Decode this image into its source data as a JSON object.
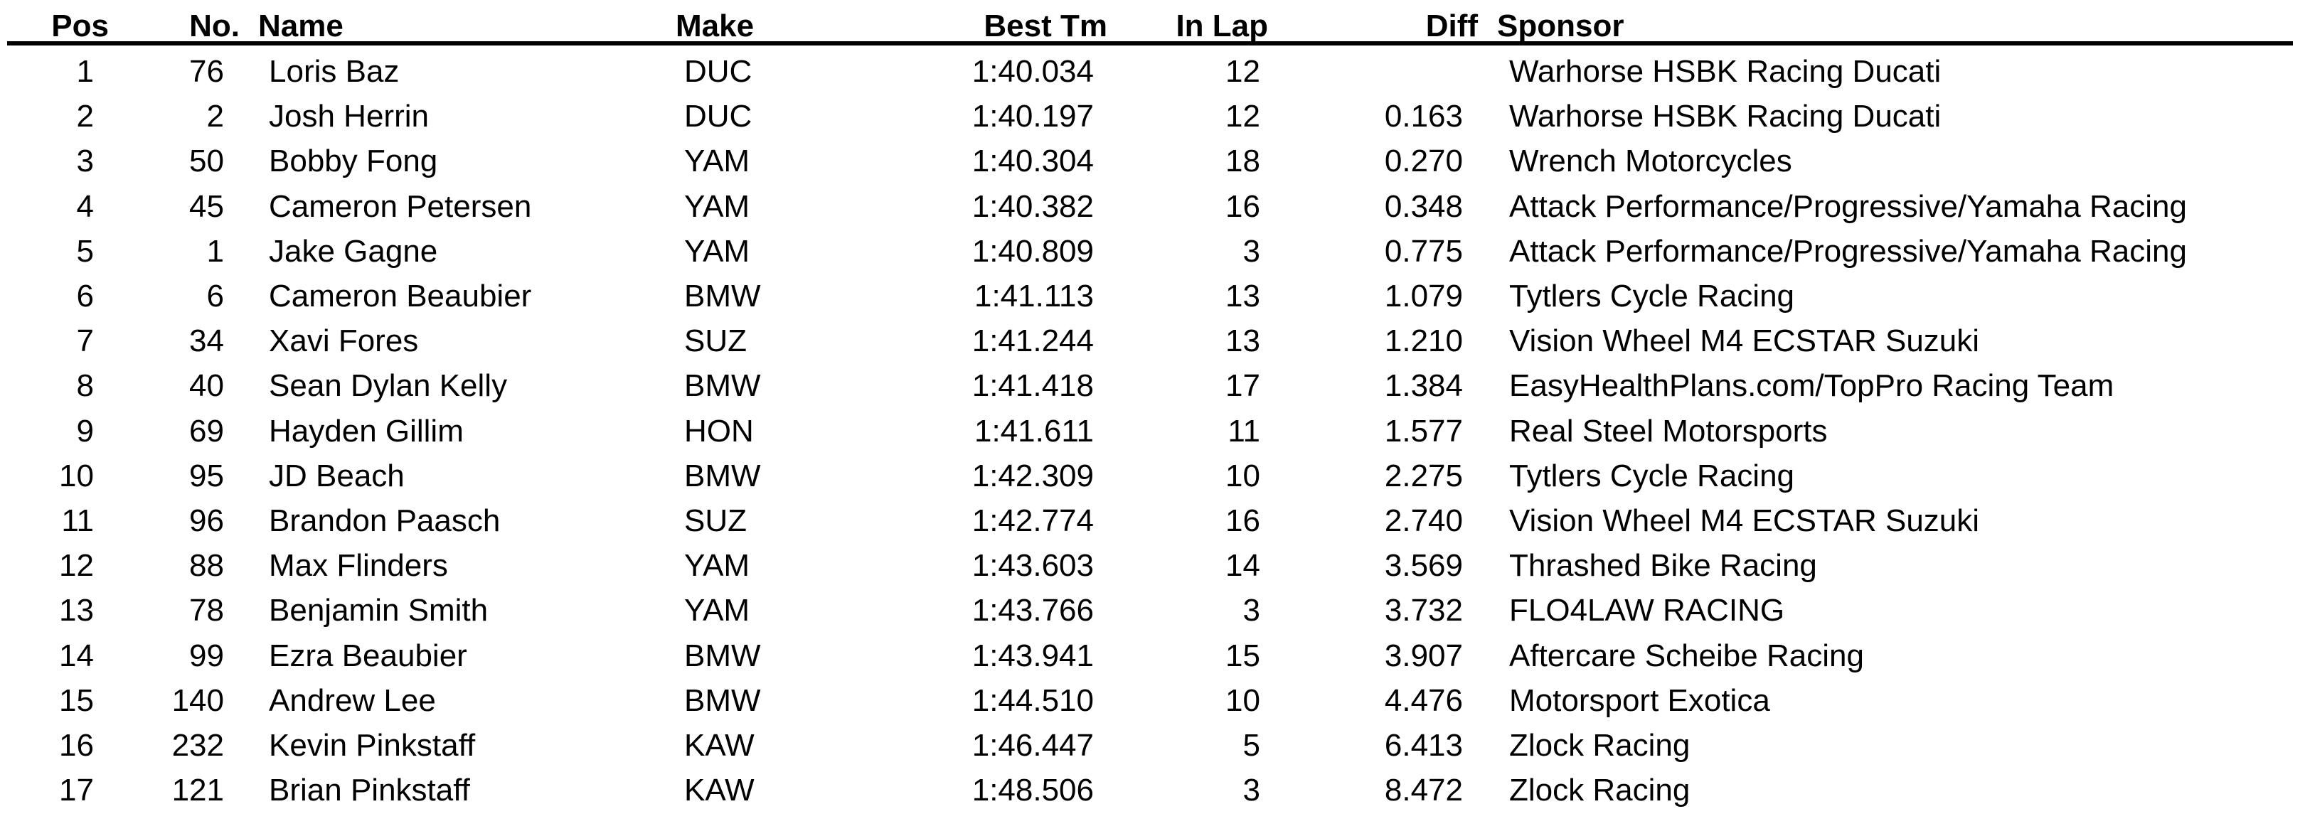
{
  "colors": {
    "text": "#000000",
    "background": "#ffffff",
    "rule": "#000000"
  },
  "table": {
    "columns": [
      {
        "key": "pos",
        "label": "Pos",
        "align": "right"
      },
      {
        "key": "no",
        "label": "No.",
        "align": "right"
      },
      {
        "key": "name",
        "label": "Name",
        "align": "left"
      },
      {
        "key": "make",
        "label": "Make",
        "align": "left"
      },
      {
        "key": "best",
        "label": "Best Tm",
        "align": "right"
      },
      {
        "key": "inlap",
        "label": "In Lap",
        "align": "right"
      },
      {
        "key": "diff",
        "label": "Diff",
        "align": "right"
      },
      {
        "key": "sponsor",
        "label": "Sponsor",
        "align": "left"
      }
    ],
    "rows": [
      {
        "pos": "1",
        "no": "76",
        "name": "Loris Baz",
        "make": "DUC",
        "best": "1:40.034",
        "inlap": "12",
        "diff": "",
        "sponsor": "Warhorse HSBK Racing Ducati"
      },
      {
        "pos": "2",
        "no": "2",
        "name": "Josh Herrin",
        "make": "DUC",
        "best": "1:40.197",
        "inlap": "12",
        "diff": "0.163",
        "sponsor": "Warhorse HSBK Racing Ducati"
      },
      {
        "pos": "3",
        "no": "50",
        "name": "Bobby Fong",
        "make": "YAM",
        "best": "1:40.304",
        "inlap": "18",
        "diff": "0.270",
        "sponsor": "Wrench Motorcycles"
      },
      {
        "pos": "4",
        "no": "45",
        "name": "Cameron Petersen",
        "make": "YAM",
        "best": "1:40.382",
        "inlap": "16",
        "diff": "0.348",
        "sponsor": "Attack Performance/Progressive/Yamaha Racing"
      },
      {
        "pos": "5",
        "no": "1",
        "name": "Jake Gagne",
        "make": "YAM",
        "best": "1:40.809",
        "inlap": "3",
        "diff": "0.775",
        "sponsor": "Attack Performance/Progressive/Yamaha Racing"
      },
      {
        "pos": "6",
        "no": "6",
        "name": "Cameron Beaubier",
        "make": "BMW",
        "best": "1:41.113",
        "inlap": "13",
        "diff": "1.079",
        "sponsor": "Tytlers Cycle Racing"
      },
      {
        "pos": "7",
        "no": "34",
        "name": "Xavi Fores",
        "make": "SUZ",
        "best": "1:41.244",
        "inlap": "13",
        "diff": "1.210",
        "sponsor": "Vision Wheel M4 ECSTAR Suzuki"
      },
      {
        "pos": "8",
        "no": "40",
        "name": "Sean Dylan Kelly",
        "make": "BMW",
        "best": "1:41.418",
        "inlap": "17",
        "diff": "1.384",
        "sponsor": "EasyHealthPlans.com/TopPro Racing Team"
      },
      {
        "pos": "9",
        "no": "69",
        "name": "Hayden Gillim",
        "make": "HON",
        "best": "1:41.611",
        "inlap": "11",
        "diff": "1.577",
        "sponsor": "Real Steel Motorsports"
      },
      {
        "pos": "10",
        "no": "95",
        "name": "JD Beach",
        "make": "BMW",
        "best": "1:42.309",
        "inlap": "10",
        "diff": "2.275",
        "sponsor": "Tytlers Cycle Racing"
      },
      {
        "pos": "11",
        "no": "96",
        "name": "Brandon Paasch",
        "make": "SUZ",
        "best": "1:42.774",
        "inlap": "16",
        "diff": "2.740",
        "sponsor": "Vision Wheel M4 ECSTAR Suzuki"
      },
      {
        "pos": "12",
        "no": "88",
        "name": "Max Flinders",
        "make": "YAM",
        "best": "1:43.603",
        "inlap": "14",
        "diff": "3.569",
        "sponsor": "Thrashed Bike Racing"
      },
      {
        "pos": "13",
        "no": "78",
        "name": "Benjamin Smith",
        "make": "YAM",
        "best": "1:43.766",
        "inlap": "3",
        "diff": "3.732",
        "sponsor": "FLO4LAW RACING"
      },
      {
        "pos": "14",
        "no": "99",
        "name": "Ezra Beaubier",
        "make": "BMW",
        "best": "1:43.941",
        "inlap": "15",
        "diff": "3.907",
        "sponsor": "Aftercare Scheibe Racing"
      },
      {
        "pos": "15",
        "no": "140",
        "name": "Andrew Lee",
        "make": "BMW",
        "best": "1:44.510",
        "inlap": "10",
        "diff": "4.476",
        "sponsor": "Motorsport Exotica"
      },
      {
        "pos": "16",
        "no": "232",
        "name": "Kevin Pinkstaff",
        "make": "KAW",
        "best": "1:46.447",
        "inlap": "5",
        "diff": "6.413",
        "sponsor": "Zlock Racing"
      },
      {
        "pos": "17",
        "no": "121",
        "name": "Brian Pinkstaff",
        "make": "KAW",
        "best": "1:48.506",
        "inlap": "3",
        "diff": "8.472",
        "sponsor": "Zlock Racing"
      }
    ]
  }
}
